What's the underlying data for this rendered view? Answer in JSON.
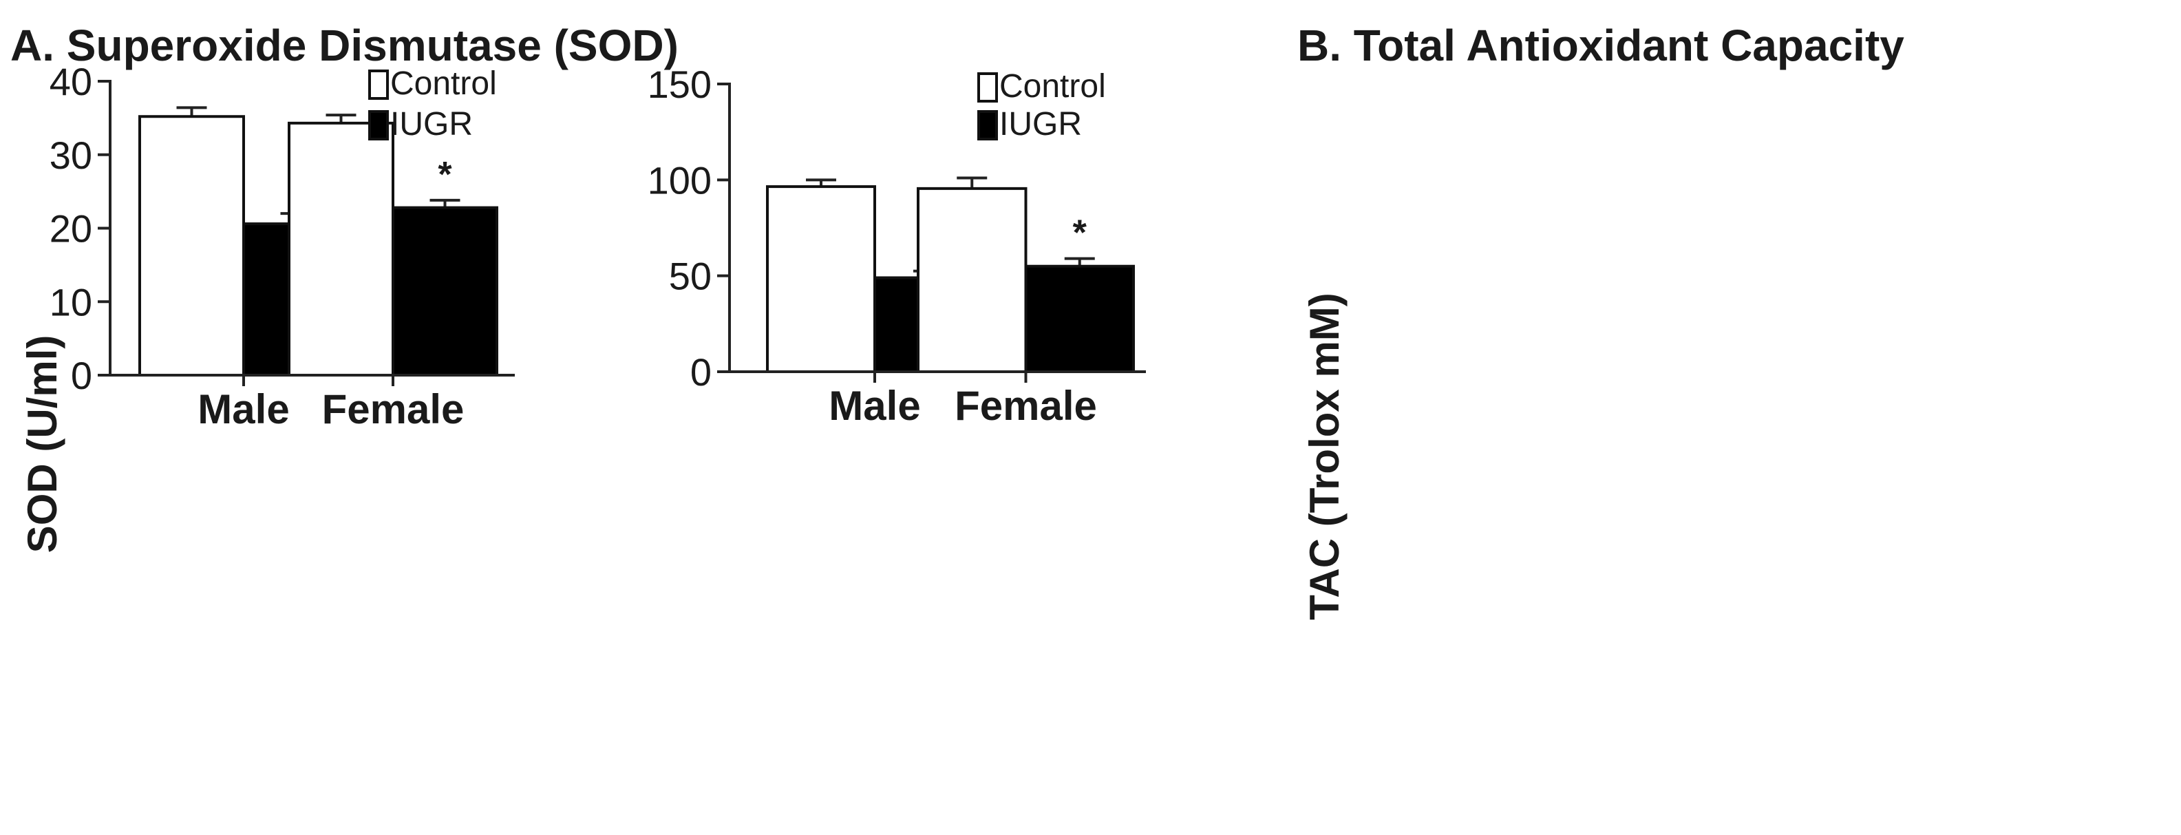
{
  "chart_data": [
    {
      "type": "bar",
      "title": "A. Superoxide Dismutase (SOD)",
      "ylabel": "SOD (U/ml)",
      "xlabel": "",
      "categories": [
        "Male",
        "Female"
      ],
      "ylim": [
        0,
        40
      ],
      "yticks": [
        0,
        10,
        20,
        30,
        40
      ],
      "legend_position": "top-right",
      "series": [
        {
          "name": "Control",
          "values": [
            35.2,
            34.3
          ],
          "errors": [
            1.2,
            1.1
          ],
          "fill": "#ffffff",
          "significance": [
            "",
            ""
          ]
        },
        {
          "name": "IUGR",
          "values": [
            20.6,
            22.8
          ],
          "errors": [
            1.4,
            1.0
          ],
          "fill": "#000000",
          "significance": [
            "*",
            "*"
          ]
        }
      ]
    },
    {
      "type": "bar",
      "title": "B. Total Antioxidant Capacity",
      "ylabel": "TAC (Trolox mM)",
      "xlabel": "",
      "categories": [
        "Male",
        "Female"
      ],
      "ylim": [
        0,
        150
      ],
      "yticks": [
        0,
        50,
        100,
        150
      ],
      "legend_position": "top-right",
      "series": [
        {
          "name": "Control",
          "values": [
            96.5,
            95.5
          ],
          "errors": [
            3.5,
            5.5
          ],
          "fill": "#ffffff",
          "significance": [
            "",
            ""
          ]
        },
        {
          "name": "IUGR",
          "values": [
            49.0,
            55.0
          ],
          "errors": [
            3.5,
            4.0
          ],
          "fill": "#000000",
          "significance": [
            "*",
            "*"
          ]
        }
      ]
    }
  ]
}
